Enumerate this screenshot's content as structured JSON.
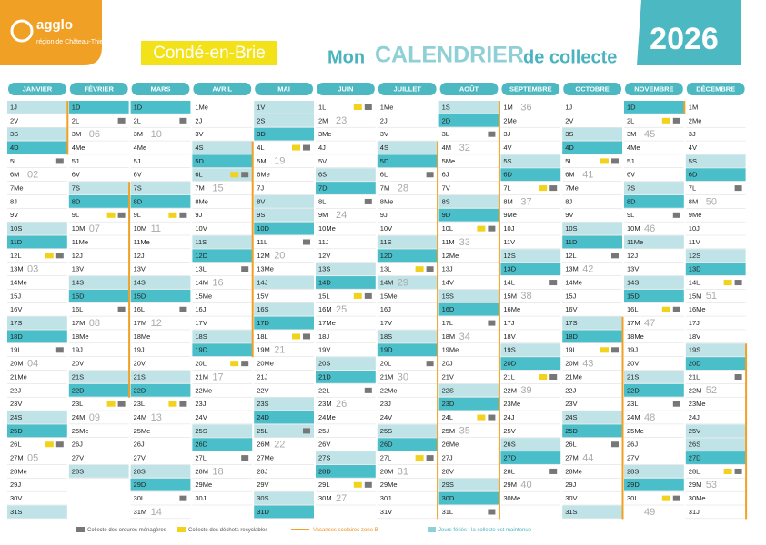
{
  "header": {
    "logo": "agglo",
    "logo_sub": "région de Château-Thierry",
    "commune": "Condé-en-Brie",
    "title_a": "Mon",
    "title_b": "CALENDRIER",
    "title_c": "de collecte",
    "year": "2026"
  },
  "legend": {
    "ordures": "Collecte des ordures ménagères",
    "tri": "Collecte des déchets recyclables",
    "vacances": "Vacances scolaires zone B",
    "feries": "Jours fériés : la collecte est maintenue"
  },
  "months": [
    {
      "name": "JANVIER",
      "days": [
        "1J",
        "2V",
        "3S",
        "4D",
        "5L",
        "6M",
        "7Me",
        "8J",
        "9V",
        "10S",
        "11D",
        "12L",
        "13M",
        "14Me",
        "15J",
        "16V",
        "17S",
        "18D",
        "19L",
        "20M",
        "21Me",
        "22J",
        "23V",
        "24S",
        "25D",
        "26L",
        "27M",
        "28Me",
        "29J",
        "30V",
        "31S"
      ],
      "weeks": [
        {
          "day": 6,
          "label": "02"
        },
        {
          "day": 13,
          "label": "03"
        },
        {
          "day": 20,
          "label": "04"
        },
        {
          "day": 27,
          "label": "05"
        }
      ],
      "ordures": [
        5,
        12,
        19,
        26
      ],
      "tri": [
        12,
        26
      ],
      "holidays": [
        1
      ],
      "vac": [
        1,
        4
      ]
    },
    {
      "name": "FÉVRIER",
      "days": [
        "1D",
        "2L",
        "3M",
        "4Me",
        "5J",
        "6V",
        "7S",
        "8D",
        "9L",
        "10M",
        "11Me",
        "12J",
        "13V",
        "14S",
        "15D",
        "16L",
        "17M",
        "18Me",
        "19J",
        "20V",
        "21S",
        "22D",
        "23L",
        "24M",
        "25Me",
        "26J",
        "27V",
        "28S"
      ],
      "weeks": [
        {
          "day": 3,
          "label": "06"
        },
        {
          "day": 10,
          "label": "07"
        },
        {
          "day": 17,
          "label": "08"
        },
        {
          "day": 24,
          "label": "09"
        }
      ],
      "ordures": [
        2,
        9,
        16,
        23
      ],
      "tri": [
        9,
        23
      ],
      "holidays": [],
      "vac": [
        7,
        22
      ]
    },
    {
      "name": "MARS",
      "days": [
        "1D",
        "2L",
        "3M",
        "4Me",
        "5J",
        "6V",
        "7S",
        "8D",
        "9L",
        "10M",
        "11Me",
        "12J",
        "13V",
        "14S",
        "15D",
        "16L",
        "17M",
        "18Me",
        "19J",
        "20V",
        "21S",
        "22D",
        "23L",
        "24M",
        "25Me",
        "26J",
        "27V",
        "28S",
        "29D",
        "30L",
        "31M"
      ],
      "weeks": [
        {
          "day": 3,
          "label": "10"
        },
        {
          "day": 10,
          "label": "11"
        },
        {
          "day": 17,
          "label": "12"
        },
        {
          "day": 24,
          "label": "13"
        },
        {
          "day": 31,
          "label": "14"
        }
      ],
      "ordures": [
        2,
        9,
        16,
        23,
        30
      ],
      "tri": [
        9,
        23
      ],
      "holidays": []
    },
    {
      "name": "AVRIL",
      "days": [
        "1Me",
        "2J",
        "3V",
        "4S",
        "5D",
        "6L",
        "7M",
        "8Me",
        "9J",
        "10V",
        "11S",
        "12D",
        "13L",
        "14M",
        "15Me",
        "16J",
        "17V",
        "18S",
        "19D",
        "20L",
        "21M",
        "22Me",
        "23J",
        "24V",
        "25S",
        "26D",
        "27L",
        "28M",
        "29Me",
        "30J"
      ],
      "weeks": [
        {
          "day": 7,
          "label": "15"
        },
        {
          "day": 14,
          "label": "16"
        },
        {
          "day": 21,
          "label": "17"
        },
        {
          "day": 28,
          "label": "18"
        }
      ],
      "ordures": [
        6,
        13,
        20,
        27
      ],
      "tri": [
        6,
        20
      ],
      "holidays": [
        6
      ],
      "vac": [
        4,
        19
      ]
    },
    {
      "name": "MAI",
      "days": [
        "1V",
        "2S",
        "3D",
        "4L",
        "5M",
        "6Me",
        "7J",
        "8V",
        "9S",
        "10D",
        "11L",
        "12M",
        "13Me",
        "14J",
        "15V",
        "16S",
        "17D",
        "18L",
        "19M",
        "20Me",
        "21J",
        "22V",
        "23S",
        "24D",
        "25L",
        "26M",
        "27Me",
        "28J",
        "29V",
        "30S",
        "31D"
      ],
      "weeks": [
        {
          "day": 5,
          "label": "19"
        },
        {
          "day": 12,
          "label": "20"
        },
        {
          "day": 19,
          "label": "21"
        },
        {
          "day": 26,
          "label": "22"
        }
      ],
      "ordures": [
        4,
        11,
        18,
        25
      ],
      "tri": [
        4,
        18
      ],
      "holidays": [
        1,
        8,
        14,
        25
      ]
    },
    {
      "name": "JUIN",
      "days": [
        "1L",
        "2M",
        "3Me",
        "4J",
        "5V",
        "6S",
        "7D",
        "8L",
        "9M",
        "10Me",
        "11J",
        "12V",
        "13S",
        "14D",
        "15L",
        "16M",
        "17Me",
        "18J",
        "19V",
        "20S",
        "21D",
        "22L",
        "23M",
        "24Me",
        "25J",
        "26V",
        "27S",
        "28D",
        "29L",
        "30M"
      ],
      "weeks": [
        {
          "day": 2,
          "label": "23"
        },
        {
          "day": 9,
          "label": "24"
        },
        {
          "day": 16,
          "label": "25"
        },
        {
          "day": 23,
          "label": "26"
        },
        {
          "day": 30,
          "label": "27"
        }
      ],
      "ordures": [
        1,
        8,
        15,
        22,
        29
      ],
      "tri": [
        1,
        15,
        29
      ],
      "holidays": []
    },
    {
      "name": "JUILLET",
      "days": [
        "1Me",
        "2J",
        "3V",
        "4S",
        "5D",
        "6L",
        "7M",
        "8Me",
        "9J",
        "10V",
        "11S",
        "12D",
        "13L",
        "14M",
        "15Me",
        "16J",
        "17V",
        "18S",
        "19D",
        "20L",
        "21M",
        "22Me",
        "23J",
        "24V",
        "25S",
        "26D",
        "27L",
        "28M",
        "29Me",
        "30J",
        "31V"
      ],
      "weeks": [
        {
          "day": 7,
          "label": "28"
        },
        {
          "day": 14,
          "label": "29"
        },
        {
          "day": 21,
          "label": "30"
        },
        {
          "day": 28,
          "label": "31"
        }
      ],
      "ordures": [
        6,
        13,
        20,
        27
      ],
      "tri": [
        13,
        27
      ],
      "holidays": [
        14
      ],
      "vac": [
        4,
        31
      ]
    },
    {
      "name": "AOÛT",
      "days": [
        "1S",
        "2D",
        "3L",
        "4M",
        "5Me",
        "6J",
        "7V",
        "8S",
        "9D",
        "10L",
        "11M",
        "12Me",
        "13J",
        "14V",
        "15S",
        "16D",
        "17L",
        "18M",
        "19Me",
        "20J",
        "21V",
        "22S",
        "23D",
        "24L",
        "25M",
        "26Me",
        "27J",
        "28V",
        "29S",
        "30D",
        "31L"
      ],
      "weeks": [
        {
          "day": 4,
          "label": "32"
        },
        {
          "day": 11,
          "label": "33"
        },
        {
          "day": 18,
          "label": "34"
        },
        {
          "day": 25,
          "label": "35"
        }
      ],
      "ordures": [
        3,
        10,
        17,
        24,
        31
      ],
      "tri": [
        10,
        24
      ],
      "holidays": [
        15
      ],
      "vac": [
        1,
        31
      ]
    },
    {
      "name": "SEPTEMBRE",
      "days": [
        "1M",
        "2Me",
        "3J",
        "4V",
        "5S",
        "6D",
        "7L",
        "8M",
        "9Me",
        "10J",
        "11V",
        "12S",
        "13D",
        "14L",
        "15M",
        "16Me",
        "17J",
        "18V",
        "19S",
        "20D",
        "21L",
        "22M",
        "23Me",
        "24J",
        "25V",
        "26S",
        "27D",
        "28L",
        "29M",
        "30Me"
      ],
      "weeks": [
        {
          "day": 1,
          "label": "36"
        },
        {
          "day": 8,
          "label": "37"
        },
        {
          "day": 15,
          "label": "38"
        },
        {
          "day": 22,
          "label": "39"
        },
        {
          "day": 29,
          "label": "40"
        }
      ],
      "ordures": [
        7,
        14,
        21,
        28
      ],
      "tri": [
        7,
        21
      ],
      "holidays": []
    },
    {
      "name": "OCTOBRE",
      "days": [
        "1J",
        "2V",
        "3S",
        "4D",
        "5L",
        "6M",
        "7Me",
        "8J",
        "9V",
        "10S",
        "11D",
        "12L",
        "13M",
        "14Me",
        "15J",
        "16V",
        "17S",
        "18D",
        "19L",
        "20M",
        "21Me",
        "22J",
        "23V",
        "24S",
        "25D",
        "26L",
        "27M",
        "28Me",
        "29J",
        "30V",
        "31S"
      ],
      "weeks": [
        {
          "day": 6,
          "label": "41"
        },
        {
          "day": 13,
          "label": "42"
        },
        {
          "day": 20,
          "label": "43"
        },
        {
          "day": 27,
          "label": "44"
        }
      ],
      "ordures": [
        5,
        12,
        19,
        26
      ],
      "tri": [
        5,
        19
      ],
      "holidays": [],
      "vac": [
        17,
        31
      ]
    },
    {
      "name": "NOVEMBRE",
      "days": [
        "1D",
        "2L",
        "3M",
        "4Me",
        "5J",
        "6V",
        "7S",
        "8D",
        "9L",
        "10M",
        "11Me",
        "12J",
        "13V",
        "14S",
        "15D",
        "16L",
        "17M",
        "18Me",
        "19J",
        "20V",
        "21S",
        "22D",
        "23L",
        "24M",
        "25Me",
        "26J",
        "27V",
        "28S",
        "29D",
        "30L"
      ],
      "weeks": [
        {
          "day": 3,
          "label": "45"
        },
        {
          "day": 10,
          "label": "46"
        },
        {
          "day": 17,
          "label": "47"
        },
        {
          "day": 24,
          "label": "48"
        },
        {
          "day": 31,
          "label": "49"
        }
      ],
      "ordures": [
        2,
        9,
        16,
        23,
        30
      ],
      "tri": [
        2,
        16,
        30
      ],
      "holidays": [
        1,
        11
      ],
      "vac": [
        1,
        1
      ]
    },
    {
      "name": "DÉCEMBRE",
      "days": [
        "1M",
        "2Me",
        "3J",
        "4V",
        "5S",
        "6D",
        "7L",
        "8M",
        "9Me",
        "10J",
        "11V",
        "12S",
        "13D",
        "14L",
        "15M",
        "16Me",
        "17J",
        "18V",
        "19S",
        "20D",
        "21L",
        "22M",
        "23Me",
        "24J",
        "25V",
        "26S",
        "27D",
        "28L",
        "29M",
        "30Me",
        "31J"
      ],
      "weeks": [
        {
          "day": 8,
          "label": "50"
        },
        {
          "day": 15,
          "label": "51"
        },
        {
          "day": 22,
          "label": "52"
        },
        {
          "day": 29,
          "label": "53"
        }
      ],
      "ordures": [
        7,
        14,
        21,
        28
      ],
      "tri": [
        14,
        28
      ],
      "holidays": [
        25
      ],
      "vac": [
        19,
        31
      ]
    }
  ]
}
